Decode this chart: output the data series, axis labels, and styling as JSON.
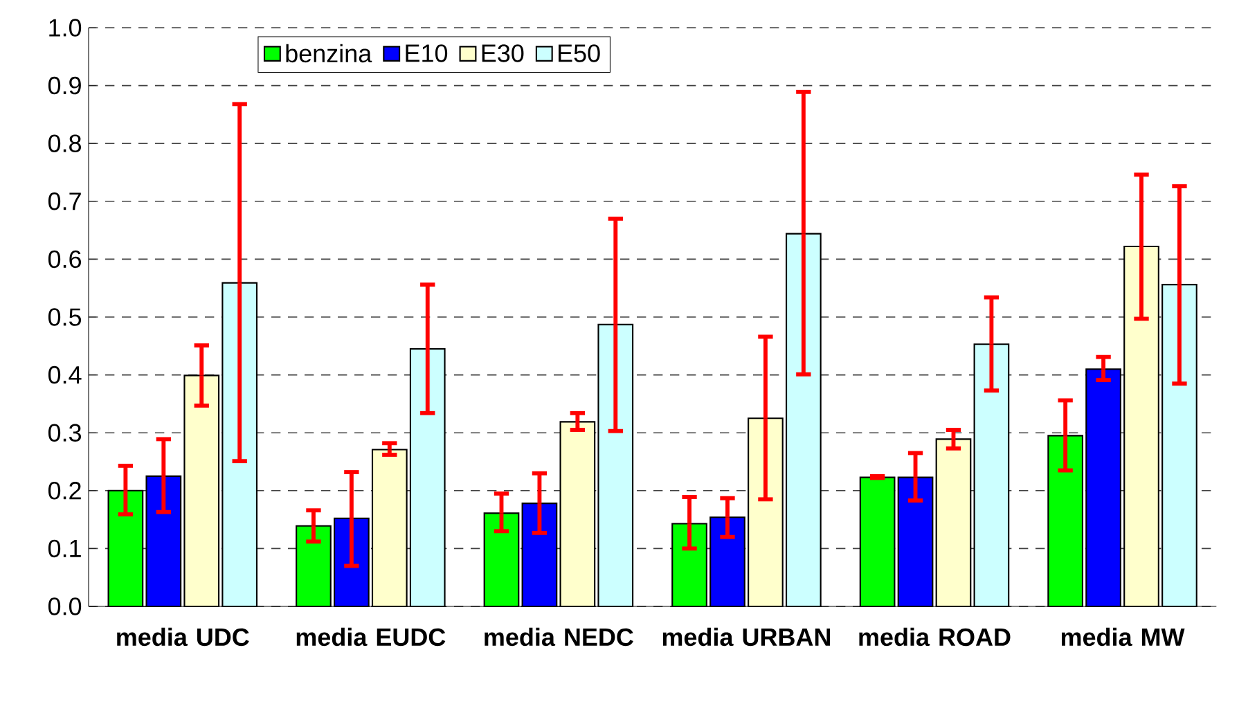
{
  "chart_data": {
    "type": "bar",
    "categories": [
      "media UDC",
      "media EUDC",
      "media NEDC",
      "media URBAN",
      "media ROAD",
      "media MW"
    ],
    "series": [
      {
        "name": "benzina",
        "color": "#00ff00",
        "values": [
          0.2,
          0.139,
          0.161,
          0.143,
          0.223,
          0.295
        ],
        "errors": [
          [
            0.159,
            0.243
          ],
          [
            0.112,
            0.166
          ],
          [
            0.13,
            0.195
          ],
          [
            0.1,
            0.189
          ],
          [
            0.222,
            0.225
          ],
          [
            0.235,
            0.356
          ]
        ]
      },
      {
        "name": "E10",
        "color": "#0000ff",
        "values": [
          0.225,
          0.152,
          0.178,
          0.154,
          0.223,
          0.41
        ],
        "errors": [
          [
            0.163,
            0.289
          ],
          [
            0.07,
            0.232
          ],
          [
            0.127,
            0.23
          ],
          [
            0.12,
            0.187
          ],
          [
            0.183,
            0.265
          ],
          [
            0.391,
            0.431
          ]
        ]
      },
      {
        "name": "E30",
        "color": "#ffffcc",
        "values": [
          0.399,
          0.271,
          0.319,
          0.325,
          0.289,
          0.622
        ],
        "errors": [
          [
            0.347,
            0.451
          ],
          [
            0.262,
            0.282
          ],
          [
            0.305,
            0.334
          ],
          [
            0.185,
            0.466
          ],
          [
            0.273,
            0.305
          ],
          [
            0.497,
            0.746
          ]
        ]
      },
      {
        "name": "E50",
        "color": "#ccffff",
        "values": [
          0.559,
          0.445,
          0.487,
          0.644,
          0.453,
          0.556
        ],
        "errors": [
          [
            0.251,
            0.868
          ],
          [
            0.334,
            0.556
          ],
          [
            0.303,
            0.67
          ],
          [
            0.401,
            0.889
          ],
          [
            0.373,
            0.534
          ],
          [
            0.385,
            0.726
          ]
        ]
      }
    ],
    "ylim": [
      0,
      1.0
    ],
    "yticks": [
      {
        "value": 0,
        "label": "0.0"
      },
      0.1,
      0.2,
      0.3,
      0.4,
      0.5,
      0.6,
      0.7,
      0.8,
      0.9,
      {
        "value": 1.0,
        "label": "1.0"
      }
    ],
    "grid": "y",
    "legend": "top"
  }
}
